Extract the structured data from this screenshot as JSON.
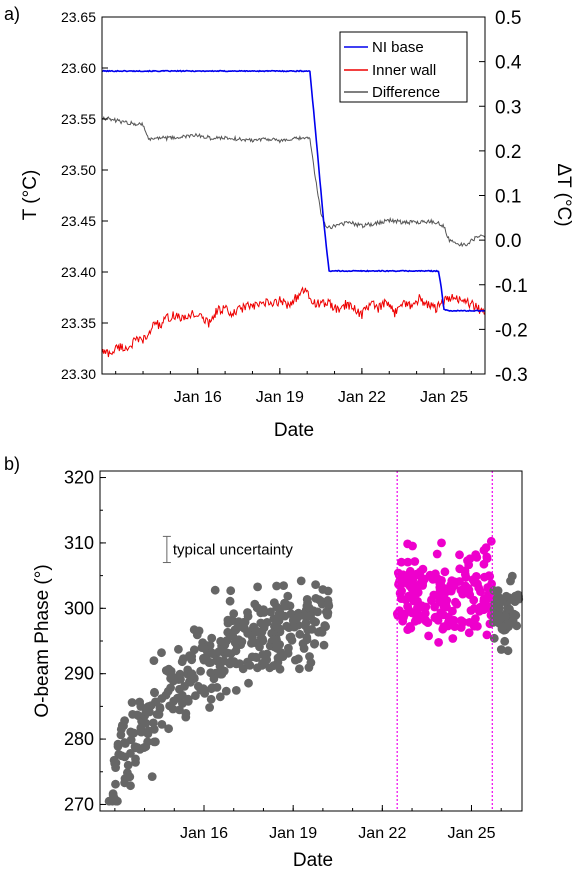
{
  "figure": {
    "panel_a_tag": "a)",
    "panel_b_tag": "b)"
  },
  "chart_data": [
    {
      "type": "line",
      "panel": "a)",
      "xlabel": "Date",
      "ylabel": "T (°C)",
      "y2label": "ΔT (°C)",
      "x_unit": "day of January",
      "xlim": [
        12.5,
        26.5
      ],
      "x_ticks": [
        16,
        19,
        22,
        25
      ],
      "x_tick_labels": [
        "Jan 16",
        "Jan 19",
        "Jan 22",
        "Jan 25"
      ],
      "ylim": [
        23.3,
        23.65
      ],
      "y_ticks": [
        23.3,
        23.35,
        23.4,
        23.45,
        23.5,
        23.55,
        23.6,
        23.65
      ],
      "y_tick_labels": [
        "23.30",
        "23.35",
        "23.40",
        "23.45",
        "23.50",
        "23.55",
        "23.60",
        "23.65"
      ],
      "y2lim": [
        -0.3,
        0.5
      ],
      "y2_ticks": [
        -0.3,
        -0.2,
        -0.1,
        0.0,
        0.1,
        0.2,
        0.3,
        0.4,
        0.5
      ],
      "y2_tick_labels": [
        "-0.3",
        "-0.2",
        "-0.1",
        "0.0",
        "0.1",
        "0.2",
        "0.3",
        "0.4",
        "0.5"
      ],
      "legend": {
        "position": "top-right",
        "entries": [
          "NI base",
          "Inner wall",
          "Difference"
        ]
      },
      "grid": false,
      "series": [
        {
          "name": "NI base",
          "axis": "left",
          "color": "#0000ee",
          "x": [
            12.5,
            20.1,
            20.4,
            20.6,
            20.8,
            24.8,
            24.9,
            25.0,
            25.2,
            26.5
          ],
          "y": [
            23.597,
            23.597,
            23.51,
            23.45,
            23.401,
            23.401,
            23.385,
            23.363,
            23.362,
            23.362
          ]
        },
        {
          "name": "Inner wall",
          "axis": "left",
          "color": "#ee0000",
          "x": [
            12.5,
            12.8,
            13.1,
            13.4,
            13.7,
            14.0,
            14.2,
            14.4,
            14.6,
            14.9,
            15.2,
            15.5,
            15.8,
            16.1,
            16.4,
            16.7,
            17.0,
            17.2,
            17.5,
            17.8,
            18.1,
            18.4,
            18.7,
            19.0,
            19.3,
            19.6,
            19.9,
            20.2,
            20.5,
            20.8,
            21.1,
            21.4,
            21.7,
            22.0,
            22.3,
            22.6,
            22.9,
            23.2,
            23.5,
            23.8,
            24.1,
            24.4,
            24.7,
            25.0,
            25.3,
            25.6,
            25.9,
            26.2,
            26.5
          ],
          "y": [
            23.322,
            23.32,
            23.327,
            23.325,
            23.332,
            23.334,
            23.336,
            23.352,
            23.347,
            23.355,
            23.358,
            23.353,
            23.36,
            23.356,
            23.35,
            23.362,
            23.365,
            23.357,
            23.363,
            23.367,
            23.366,
            23.37,
            23.368,
            23.372,
            23.368,
            23.375,
            23.382,
            23.371,
            23.368,
            23.37,
            23.362,
            23.368,
            23.365,
            23.358,
            23.37,
            23.364,
            23.37,
            23.36,
            23.372,
            23.366,
            23.374,
            23.368,
            23.364,
            23.372,
            23.374,
            23.374,
            23.369,
            23.366,
            23.358
          ]
        },
        {
          "name": "Difference",
          "axis": "right",
          "color": "#555555",
          "x": [
            12.5,
            13.0,
            13.5,
            14.0,
            14.2,
            14.5,
            15.0,
            15.5,
            16.0,
            16.5,
            17.0,
            17.5,
            18.0,
            18.5,
            19.0,
            19.5,
            20.0,
            20.1,
            20.3,
            20.5,
            20.7,
            20.9,
            21.2,
            21.5,
            22.0,
            22.5,
            23.0,
            23.5,
            24.0,
            24.5,
            24.8,
            25.0,
            25.2,
            25.5,
            25.8,
            26.1,
            26.5
          ],
          "y": [
            0.275,
            0.268,
            0.262,
            0.26,
            0.225,
            0.23,
            0.228,
            0.232,
            0.235,
            0.228,
            0.23,
            0.226,
            0.224,
            0.228,
            0.222,
            0.226,
            0.23,
            0.225,
            0.14,
            0.06,
            0.03,
            0.03,
            0.035,
            0.04,
            0.032,
            0.038,
            0.045,
            0.04,
            0.04,
            0.042,
            0.038,
            0.03,
            -0.002,
            -0.008,
            -0.012,
            0.003,
            0.01
          ]
        }
      ]
    },
    {
      "type": "scatter",
      "panel": "b)",
      "xlabel": "Date",
      "ylabel": "O-beam Phase (°)",
      "x_unit": "day of January",
      "xlim": [
        12.5,
        26.7
      ],
      "x_ticks": [
        16,
        19,
        22,
        25
      ],
      "x_tick_labels": [
        "Jan 16",
        "Jan 19",
        "Jan 22",
        "Jan 25"
      ],
      "ylim": [
        269,
        321
      ],
      "y_ticks": [
        270,
        280,
        290,
        300,
        310,
        320
      ],
      "y_tick_labels": [
        "270",
        "280",
        "290",
        "300",
        "310",
        "320"
      ],
      "grid": false,
      "annotation": {
        "text": "typical uncertainty",
        "x": 14.75,
        "y": 309,
        "halfwidth": 2.0
      },
      "vlines": {
        "x": [
          22.5,
          25.7
        ],
        "color": "#ee00ee",
        "style": "dotted"
      },
      "series": [
        {
          "segment": "gray",
          "color": "#666666",
          "x_range": [
            12.8,
            20.2
          ],
          "trend_start": 274,
          "trend_end": 298.5,
          "spread": 4.5,
          "count": 360
        },
        {
          "segment": "magenta",
          "color": "#ee00cc",
          "x_range": [
            22.5,
            25.7
          ],
          "trend_start": 301.5,
          "trend_end": 302.5,
          "spread": 4.2,
          "count": 190
        },
        {
          "segment": "gray-late",
          "color": "#666666",
          "x_range": [
            25.7,
            26.6
          ],
          "trend_start": 298.5,
          "trend_end": 299.5,
          "spread": 3.2,
          "count": 65
        }
      ]
    }
  ]
}
